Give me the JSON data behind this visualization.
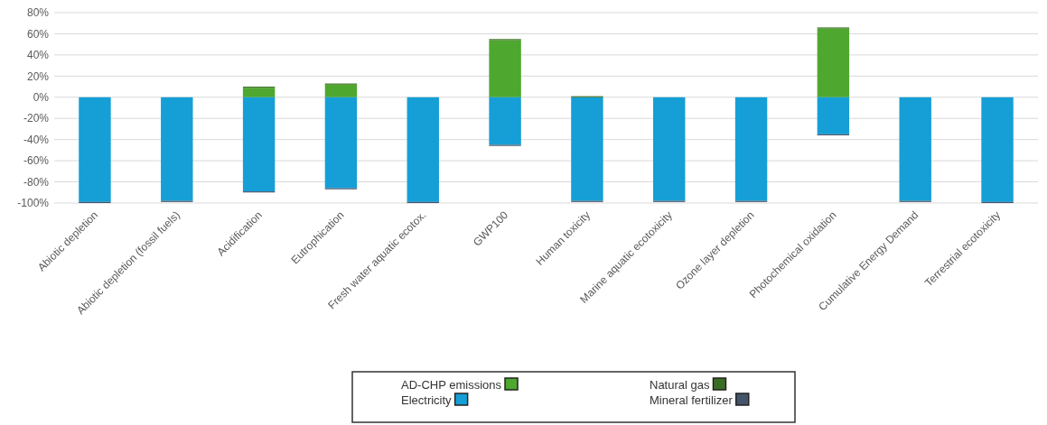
{
  "chart_data": {
    "type": "bar",
    "stacked": true,
    "categories": [
      "Abiotic depletion",
      "Abiotic depletion (fossil fuels)",
      "Acidification",
      "Eutrophication",
      "Fresh water aquatic ecotox.",
      "GWP100",
      "Human toxicity",
      "Marine aquatic ecotoxicity",
      "Ozone layer depletion",
      "Photochemical oxidation",
      "Cumulative Energy Demand",
      "Terrestrial ecotoxicity"
    ],
    "series": [
      {
        "name": "AD-CHP emissions",
        "color": "#4ea72e",
        "values": [
          0,
          0,
          9,
          12,
          0,
          54,
          0,
          0,
          0,
          65,
          0,
          0
        ]
      },
      {
        "name": "Electricity",
        "color": "#159fd6",
        "values": [
          -99,
          -98,
          -89,
          -86,
          -99,
          -45,
          -98,
          -98,
          -98,
          -35,
          -98,
          -99
        ]
      },
      {
        "name": "Natural gas",
        "color": "#3b6e22",
        "values": [
          0,
          0,
          1,
          1,
          0,
          1,
          1,
          0,
          0,
          1,
          0,
          0
        ]
      },
      {
        "name": "Mineral fertilizer",
        "color": "#44546a",
        "values": [
          -1,
          -1,
          -1,
          -1,
          -1,
          -1,
          -1,
          -1,
          -1,
          -1,
          -1,
          -1
        ]
      }
    ],
    "ylim": [
      -100,
      80
    ],
    "yticks": [
      {
        "value": -100,
        "label": "-100%"
      },
      {
        "value": -80,
        "label": "-80%"
      },
      {
        "value": -60,
        "label": "-60%"
      },
      {
        "value": -40,
        "label": "-40%"
      },
      {
        "value": -20,
        "label": "-20%"
      },
      {
        "value": 0,
        "label": "0%"
      },
      {
        "value": 20,
        "label": "20%"
      },
      {
        "value": 40,
        "label": "40%"
      },
      {
        "value": 60,
        "label": "60%"
      },
      {
        "value": 80,
        "label": "80%"
      }
    ],
    "grid": "y",
    "legend": "bottom"
  }
}
